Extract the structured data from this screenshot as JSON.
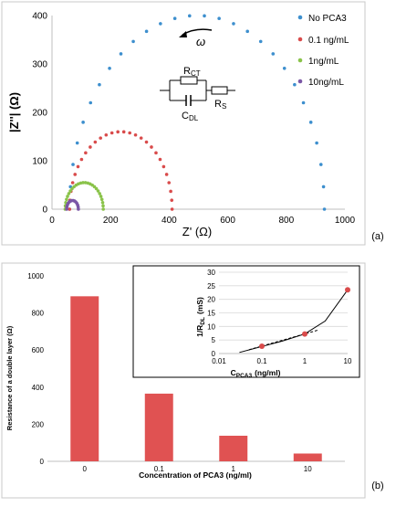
{
  "colors": {
    "blue": "#3d8fce",
    "red": "#d94b4b",
    "green": "#8ac34a",
    "purple": "#7b57a6",
    "bar": "#e05252",
    "frame": "#c8c8c8"
  },
  "panel_labels": {
    "a": "(a)",
    "b": "(b)"
  },
  "chart_data": [
    {
      "type": "scatter",
      "xlabel": "Z' (Ω)",
      "ylabel": "|Z''| (Ω)",
      "xlim": [
        0,
        1000
      ],
      "ylim": [
        0,
        400
      ],
      "x_ticks": [
        "0",
        "200",
        "400",
        "600",
        "800",
        "1000"
      ],
      "y_ticks": [
        "0",
        "100",
        "200",
        "300",
        "400"
      ],
      "annotations": {
        "rotation": "ω",
        "rct": "R",
        "rct_sub": "CT",
        "cdl": "C",
        "cdl_sub": "DL",
        "rs": "R",
        "rs_sub": "S"
      },
      "legend_position": "top-right",
      "series": [
        {
          "name": "No PCA3",
          "color": "#3d8fce",
          "x": [
            60,
            930
          ],
          "peak": 400,
          "points": 28
        },
        {
          "name": "0.1 ng/mL",
          "color": "#d94b4b",
          "x": [
            60,
            410
          ],
          "peak": 160,
          "points": 28
        },
        {
          "name": "1ng/mL",
          "color": "#8ac34a",
          "x": [
            45,
            175
          ],
          "peak": 55,
          "points": 26
        },
        {
          "name": "10ng/mL",
          "color": "#7b57a6",
          "x": [
            50,
            90
          ],
          "peak": 18,
          "points": 14
        }
      ]
    },
    {
      "type": "bar",
      "categories": [
        "0",
        "0.1",
        "1",
        "10"
      ],
      "values": [
        890,
        365,
        138,
        42
      ],
      "xlabel": "Concentration of PCA3 (ng/ml)",
      "ylabel": "Resistance of a double layer (Ω)",
      "ylim": [
        0,
        1000
      ],
      "y_ticks": [
        "0",
        "200",
        "400",
        "600",
        "800",
        "1000"
      ],
      "color": "#e05252"
    },
    {
      "type": "line",
      "scale_x": "log",
      "xlabel_main": "C",
      "xlabel_sub": "PCA3",
      "xlabel_unit": "(ng/ml)",
      "ylabel_main": "1/R",
      "ylabel_sub": "DL",
      "ylabel_unit": "(mS)",
      "xlim": [
        0.01,
        10
      ],
      "ylim": [
        0,
        30
      ],
      "x_ticks": [
        "0.01",
        "0.1",
        "1",
        "10"
      ],
      "y_ticks": [
        "0",
        "5",
        "10",
        "15",
        "20",
        "25",
        "30"
      ],
      "points": {
        "x": [
          0.1,
          1,
          10
        ],
        "y": [
          2.7,
          7.2,
          23.5
        ],
        "color": "#d94b4b"
      },
      "fit_curve": {
        "x": [
          0.03,
          0.1,
          0.3,
          1,
          3,
          10
        ],
        "y": [
          0.4,
          2.6,
          4.6,
          7.2,
          12.0,
          23.5
        ]
      },
      "dashed_line": {
        "x": [
          0.05,
          2
        ],
        "y": [
          1.4,
          8.6
        ]
      }
    }
  ]
}
